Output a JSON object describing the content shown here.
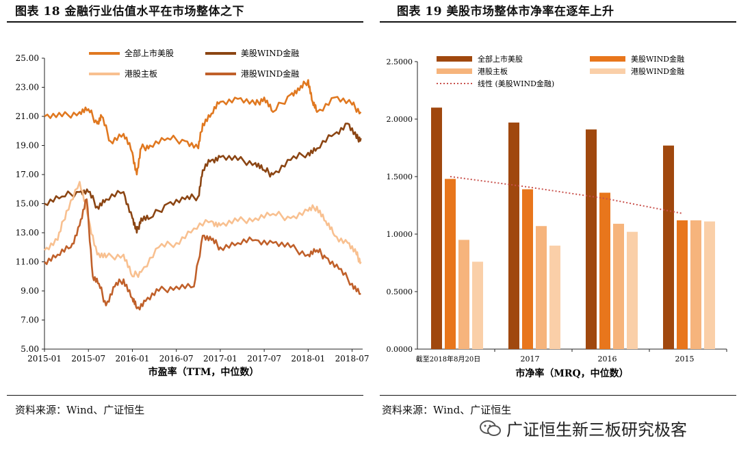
{
  "left": {
    "title": "图表 18 金融行业估值水平在市场整体之下",
    "source": "资料来源：Wind、广证恒生"
  },
  "right": {
    "title": "图表 19 美股市场整体市净率在逐年上升",
    "source": "资料来源：Wind、广证恒生"
  },
  "watermark": "广证恒生新三板研究极客",
  "colors": {
    "accent_dark": "#8B4513",
    "accent": "#E07820",
    "light": "#F8C090",
    "mid": "#C0602A",
    "trend": "#C8504B"
  },
  "chart_data": [
    {
      "type": "line",
      "xlabel": "市盈率（TTM，中位数）",
      "ylim": [
        5,
        25
      ],
      "yticks": [
        "5.00",
        "7.00",
        "9.00",
        "11.00",
        "13.00",
        "15.00",
        "17.00",
        "19.00",
        "21.00",
        "23.00",
        "25.00"
      ],
      "xticks": [
        "2015-01",
        "2015-07",
        "2016-01",
        "2016-07",
        "2017-01",
        "2017-07",
        "2018-01",
        "2018-07"
      ],
      "legend_position": "top",
      "series": [
        {
          "name": "全部上市美股",
          "color": "#E07820",
          "x": [
            2015.0,
            2015.2,
            2015.4,
            2015.5,
            2015.6,
            2015.65,
            2015.75,
            2015.9,
            2016.0,
            2016.05,
            2016.1,
            2016.2,
            2016.4,
            2016.6,
            2016.75,
            2016.8,
            2016.9,
            2017.0,
            2017.2,
            2017.4,
            2017.5,
            2017.6,
            2017.8,
            2017.9,
            2018.0,
            2018.05,
            2018.1,
            2018.3,
            2018.5,
            2018.6
          ],
          "values": [
            21.0,
            21.0,
            21.3,
            21.5,
            20.5,
            21.0,
            19.3,
            19.8,
            18.5,
            17.0,
            18.8,
            19.0,
            19.5,
            19.3,
            18.8,
            20.5,
            21.2,
            22.0,
            22.2,
            21.8,
            22.3,
            21.3,
            22.5,
            22.8,
            23.5,
            22.0,
            21.3,
            22.3,
            21.8,
            21.3
          ]
        },
        {
          "name": "美股WIND金融",
          "color": "#8B4513",
          "x": [
            2015.0,
            2015.2,
            2015.4,
            2015.5,
            2015.6,
            2015.7,
            2015.9,
            2016.0,
            2016.05,
            2016.1,
            2016.2,
            2016.4,
            2016.6,
            2016.75,
            2016.8,
            2016.9,
            2017.0,
            2017.2,
            2017.4,
            2017.5,
            2017.6,
            2017.8,
            2018.0,
            2018.1,
            2018.3,
            2018.45,
            2018.55,
            2018.6
          ],
          "values": [
            15.0,
            15.5,
            15.8,
            15.8,
            14.8,
            15.3,
            15.8,
            14.0,
            13.0,
            14.0,
            14.0,
            15.0,
            15.3,
            15.5,
            17.3,
            18.0,
            18.2,
            18.0,
            17.8,
            17.3,
            17.0,
            18.0,
            18.5,
            18.8,
            19.8,
            20.5,
            19.5,
            19.5
          ]
        },
        {
          "name": "港股主板",
          "color": "#F8C090",
          "x": [
            2015.0,
            2015.15,
            2015.25,
            2015.4,
            2015.5,
            2015.6,
            2015.7,
            2015.9,
            2016.0,
            2016.1,
            2016.3,
            2016.5,
            2016.7,
            2016.9,
            2017.0,
            2017.2,
            2017.4,
            2017.6,
            2017.8,
            2018.0,
            2018.1,
            2018.2,
            2018.3,
            2018.45,
            2018.55,
            2018.6
          ],
          "values": [
            11.8,
            12.5,
            14.5,
            16.5,
            14.0,
            11.5,
            11.3,
            11.5,
            10.0,
            10.3,
            12.0,
            12.3,
            13.3,
            13.8,
            13.5,
            13.8,
            14.0,
            14.3,
            14.0,
            14.5,
            14.8,
            13.8,
            12.8,
            12.3,
            11.5,
            11.0
          ]
        },
        {
          "name": "港股WIND金融",
          "color": "#C0602A",
          "x": [
            2015.0,
            2015.15,
            2015.3,
            2015.4,
            2015.48,
            2015.55,
            2015.62,
            2015.7,
            2015.8,
            2015.9,
            2016.0,
            2016.05,
            2016.15,
            2016.3,
            2016.5,
            2016.7,
            2016.8,
            2016.9,
            2017.0,
            2017.2,
            2017.4,
            2017.6,
            2017.8,
            2018.0,
            2018.1,
            2018.2,
            2018.35,
            2018.5,
            2018.6
          ],
          "values": [
            11.0,
            11.5,
            12.0,
            13.5,
            15.3,
            10.0,
            9.5,
            8.0,
            9.3,
            9.8,
            8.5,
            7.8,
            8.3,
            9.0,
            9.3,
            9.3,
            12.8,
            12.5,
            12.0,
            12.3,
            12.5,
            12.3,
            12.0,
            11.5,
            11.8,
            11.3,
            10.5,
            9.5,
            8.8
          ]
        }
      ]
    },
    {
      "type": "bar",
      "xlabel": "市净率（MRQ，中位数）",
      "ylim": [
        0,
        2.5
      ],
      "yticks": [
        "0.0000",
        "0.5000",
        "1.0000",
        "1.5000",
        "2.0000",
        "2.5000"
      ],
      "categories": [
        "截至2018年8月20日",
        "2017",
        "2016",
        "2015"
      ],
      "series": [
        {
          "name": "全部上市美股",
          "color": "#A0480E",
          "values": [
            2.1,
            1.97,
            1.91,
            1.77
          ]
        },
        {
          "name": "美股WIND金融",
          "color": "#E8761C",
          "values": [
            1.48,
            1.39,
            1.36,
            1.12
          ]
        },
        {
          "name": "港股主板",
          "color": "#F6B47C",
          "values": [
            0.95,
            1.07,
            1.09,
            1.12
          ]
        },
        {
          "name": "港股WIND金融",
          "color": "#FACFA8",
          "values": [
            0.76,
            0.9,
            1.02,
            1.11
          ]
        }
      ],
      "trendline": {
        "name": "线性 (美股WIND金融)",
        "color": "#C8504B",
        "values": [
          1.5,
          1.41,
          1.31,
          1.18
        ]
      },
      "legend_position": "top"
    }
  ]
}
